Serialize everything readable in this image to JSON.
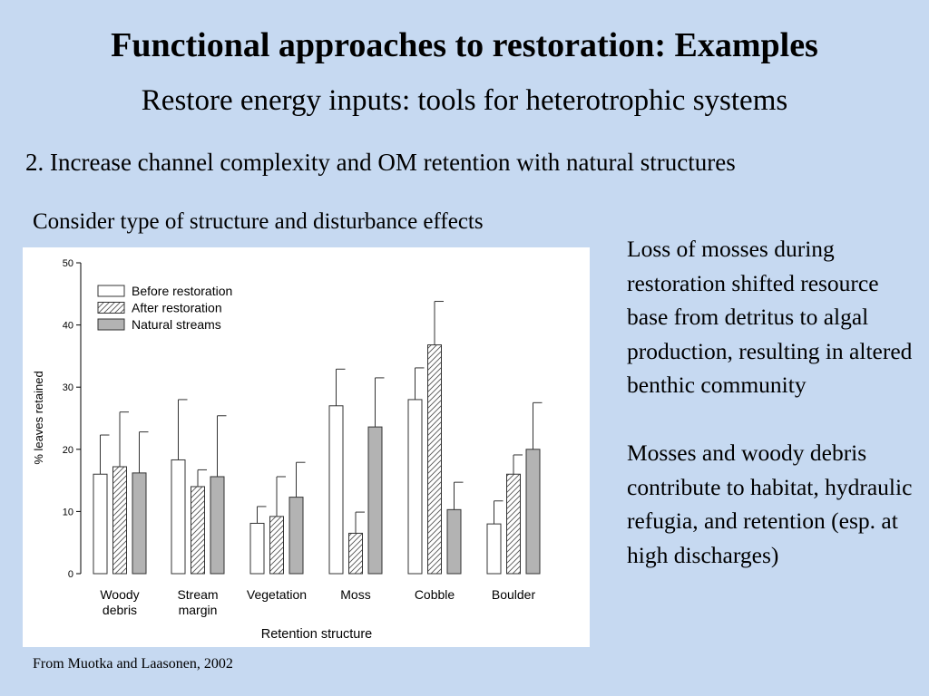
{
  "slide": {
    "title": "Functional approaches to restoration: Examples",
    "subtitle": "Restore energy inputs: tools for heterotrophic systems",
    "point": "2. Increase channel complexity and OM retention with natural structures",
    "consider": "Consider type of structure and disturbance effects",
    "paragraphs": [
      "Loss of mosses during restoration shifted resource base from detritus to algal production, resulting in altered benthic community",
      "Mosses and woody debris contribute to habitat, hydraulic refugia, and retention (esp. at high discharges)"
    ],
    "citation": "From Muotka and Laasonen, 2002"
  },
  "colors": {
    "background": "#c6d9f1",
    "before_fill": "#ffffff",
    "natural_fill": "#b3b3b3",
    "stroke": "#333333"
  },
  "chart_data": {
    "type": "bar",
    "title": "",
    "xlabel": "Retention structure",
    "ylabel": "% leaves retained",
    "ylim": [
      0,
      50
    ],
    "yticks": [
      0,
      10,
      20,
      30,
      40,
      50
    ],
    "grid": false,
    "legend_position": "top-left",
    "categories": [
      "Woody debris",
      "Stream margin",
      "Vegetation",
      "Moss",
      "Cobble",
      "Boulder"
    ],
    "category_labels": [
      [
        "Woody",
        "debris"
      ],
      [
        "Stream",
        "margin"
      ],
      [
        "Vegetation"
      ],
      [
        "Moss"
      ],
      [
        "Cobble"
      ],
      [
        "Boulder"
      ]
    ],
    "series": [
      {
        "name": "Before restoration",
        "pattern": "solid-white",
        "values": [
          16,
          18.3,
          8.1,
          27,
          28,
          8
        ],
        "errors": [
          22.3,
          28,
          10.8,
          32.9,
          33.1,
          11.7
        ]
      },
      {
        "name": "After restoration",
        "pattern": "hatched",
        "values": [
          17.2,
          14,
          9.2,
          6.5,
          36.8,
          16
        ],
        "errors": [
          26,
          16.7,
          15.6,
          9.9,
          43.8,
          19.1
        ]
      },
      {
        "name": "Natural streams",
        "pattern": "solid-gray",
        "values": [
          16.2,
          15.6,
          12.3,
          23.6,
          10.3,
          20
        ],
        "errors": [
          22.8,
          25.4,
          17.9,
          31.5,
          14.7,
          27.5
        ]
      }
    ]
  }
}
